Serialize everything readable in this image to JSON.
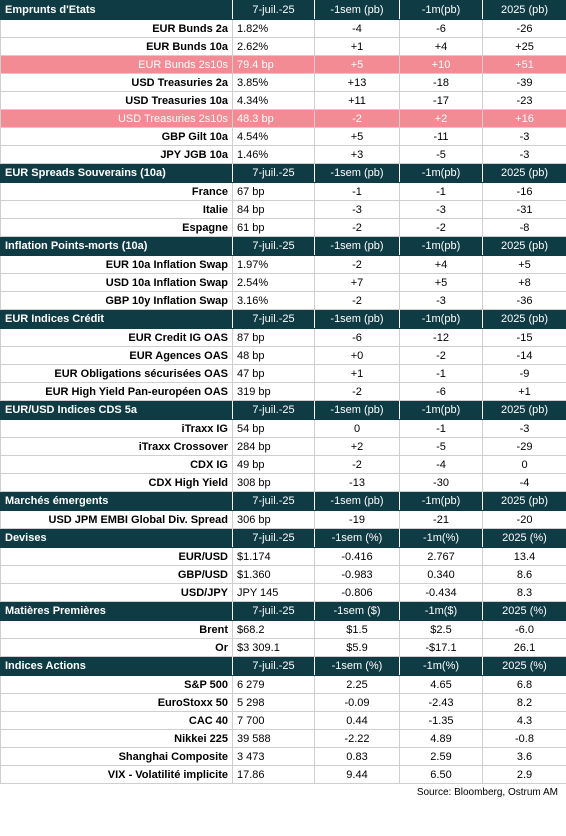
{
  "columns": [
    "7-juil.-25",
    "-1sem (pb)",
    "-1m(pb)",
    "2025 (pb)"
  ],
  "sections": [
    {
      "title": "Emprunts d'Etats",
      "headers": [
        "7-juil.-25",
        "-1sem (pb)",
        "-1m(pb)",
        "2025 (pb)"
      ],
      "rows": [
        {
          "label": "EUR Bunds 2a",
          "cells": [
            "1.82%",
            "-4",
            "-6",
            "-26"
          ],
          "highlight": false
        },
        {
          "label": "EUR Bunds 10a",
          "cells": [
            "2.62%",
            "+1",
            "+4",
            "+25"
          ],
          "highlight": false
        },
        {
          "label": "EUR Bunds 2s10s",
          "cells": [
            "79.4 bp",
            "+5",
            "+10",
            "+51"
          ],
          "highlight": true
        },
        {
          "label": "USD Treasuries 2a",
          "cells": [
            "3.85%",
            "+13",
            "-18",
            "-39"
          ],
          "highlight": false
        },
        {
          "label": "USD Treasuries 10a",
          "cells": [
            "4.34%",
            "+11",
            "-17",
            "-23"
          ],
          "highlight": false
        },
        {
          "label": "USD Treasuries 2s10s",
          "cells": [
            "48.3 bp",
            "-2",
            "+2",
            "+16"
          ],
          "highlight": true
        },
        {
          "label": "GBP Gilt 10a",
          "cells": [
            "4.54%",
            "+5",
            "-11",
            "-3"
          ],
          "highlight": false
        },
        {
          "label": "JPY JGB  10a",
          "cells": [
            "1.46%",
            "+3",
            "-5",
            "-3"
          ],
          "highlight": false
        }
      ]
    },
    {
      "title": "EUR Spreads Souverains (10a)",
      "headers": [
        "7-juil.-25",
        "-1sem (pb)",
        "-1m(pb)",
        "2025 (pb)"
      ],
      "rows": [
        {
          "label": "France",
          "cells": [
            "67 bp",
            "-1",
            "-1",
            "-16"
          ],
          "highlight": false
        },
        {
          "label": "Italie",
          "cells": [
            "84 bp",
            "-3",
            "-3",
            "-31"
          ],
          "highlight": false
        },
        {
          "label": "Espagne",
          "cells": [
            "61 bp",
            "-2",
            "-2",
            "-8"
          ],
          "highlight": false
        }
      ]
    },
    {
      "title": "Inflation Points-morts (10a)",
      "headers": [
        "7-juil.-25",
        "-1sem (pb)",
        "-1m(pb)",
        "2025 (pb)"
      ],
      "rows": [
        {
          "label": "EUR 10a Inflation Swap",
          "cells": [
            "1.97%",
            "-2",
            "+4",
            "+5"
          ],
          "highlight": false
        },
        {
          "label": "USD 10a Inflation Swap",
          "cells": [
            "2.54%",
            "+7",
            "+5",
            "+8"
          ],
          "highlight": false
        },
        {
          "label": "GBP 10y Inflation Swap",
          "cells": [
            "3.16%",
            "-2",
            "-3",
            "-36"
          ],
          "highlight": false
        }
      ]
    },
    {
      "title": "EUR Indices Crédit",
      "headers": [
        "7-juil.-25",
        "-1sem (pb)",
        "-1m(pb)",
        "2025 (pb)"
      ],
      "rows": [
        {
          "label": "EUR Credit IG OAS",
          "cells": [
            "87 bp",
            "-6",
            "-12",
            "-15"
          ],
          "highlight": false
        },
        {
          "label": "EUR Agences OAS",
          "cells": [
            "48 bp",
            "+0",
            "-2",
            "-14"
          ],
          "highlight": false
        },
        {
          "label": "EUR Obligations sécurisées OAS",
          "cells": [
            "47 bp",
            "+1",
            "-1",
            "-9"
          ],
          "highlight": false
        },
        {
          "label": "EUR High Yield Pan-européen OAS",
          "cells": [
            "319 bp",
            "-2",
            "-6",
            "+1"
          ],
          "highlight": false
        }
      ]
    },
    {
      "title": "EUR/USD Indices CDS 5a",
      "headers": [
        "7-juil.-25",
        "-1sem (pb)",
        "-1m(pb)",
        "2025 (pb)"
      ],
      "rows": [
        {
          "label": "iTraxx IG",
          "cells": [
            "54 bp",
            "0",
            "-1",
            "-3"
          ],
          "highlight": false
        },
        {
          "label": "iTraxx Crossover",
          "cells": [
            "284 bp",
            "+2",
            "-5",
            "-29"
          ],
          "highlight": false
        },
        {
          "label": "CDX IG",
          "cells": [
            "49 bp",
            "-2",
            "-4",
            "0"
          ],
          "highlight": false
        },
        {
          "label": "CDX High Yield",
          "cells": [
            "308 bp",
            "-13",
            "-30",
            "-4"
          ],
          "highlight": false
        }
      ]
    },
    {
      "title": "Marchés émergents",
      "headers": [
        "7-juil.-25",
        "-1sem (pb)",
        "-1m(pb)",
        "2025 (pb)"
      ],
      "rows": [
        {
          "label": "USD JPM EMBI Global Div. Spread",
          "cells": [
            "306 bp",
            "-19",
            "-21",
            "-20"
          ],
          "highlight": false
        }
      ]
    },
    {
      "title": "Devises",
      "headers": [
        "7-juil.-25",
        "-1sem (%)",
        "-1m(%)",
        "2025 (%)"
      ],
      "rows": [
        {
          "label": "EUR/USD",
          "cells": [
            "$1.174",
            "-0.416",
            "2.767",
            "13.4"
          ],
          "highlight": false
        },
        {
          "label": "GBP/USD",
          "cells": [
            "$1.360",
            "-0.983",
            "0.340",
            "8.6"
          ],
          "highlight": false
        },
        {
          "label": "USD/JPY",
          "cells": [
            "JPY 145",
            "-0.806",
            "-0.434",
            "8.3"
          ],
          "highlight": false
        }
      ]
    },
    {
      "title": "Matières Premières",
      "headers": [
        "7-juil.-25",
        "-1sem ($)",
        "-1m($)",
        "2025 (%)"
      ],
      "rows": [
        {
          "label": "Brent",
          "cells": [
            "$68.2",
            "$1.5",
            "$2.5",
            "-6.0"
          ],
          "highlight": false
        },
        {
          "label": "Or",
          "cells": [
            "$3 309.1",
            "$5.9",
            "-$17.1",
            "26.1"
          ],
          "highlight": false
        }
      ]
    },
    {
      "title": "Indices Actions",
      "headers": [
        "7-juil.-25",
        "-1sem (%)",
        "-1m(%)",
        "2025 (%)"
      ],
      "rows": [
        {
          "label": "S&P 500",
          "cells": [
            "6 279",
            "2.25",
            "4.65",
            "6.8"
          ],
          "highlight": false
        },
        {
          "label": "EuroStoxx 50",
          "cells": [
            "5 298",
            "-0.09",
            "-2.43",
            "8.2"
          ],
          "highlight": false
        },
        {
          "label": "CAC 40",
          "cells": [
            "7 700",
            "0.44",
            "-1.35",
            "4.3"
          ],
          "highlight": false
        },
        {
          "label": "Nikkei 225",
          "cells": [
            "39 588",
            "-2.22",
            "4.89",
            "-0.8"
          ],
          "highlight": false
        },
        {
          "label": "Shanghai Composite",
          "cells": [
            "3 473",
            "0.83",
            "2.59",
            "3.6"
          ],
          "highlight": false
        },
        {
          "label": "VIX - Volatilité implicite",
          "cells": [
            "17.86",
            "9.44",
            "6.50",
            "2.9"
          ],
          "highlight": false
        }
      ]
    }
  ],
  "source": "Source: Bloomberg, Ostrum AM",
  "colors": {
    "header_bg": "#0f3b44",
    "highlight_bg": "#f28b93",
    "grid": "#cfcfcf"
  }
}
